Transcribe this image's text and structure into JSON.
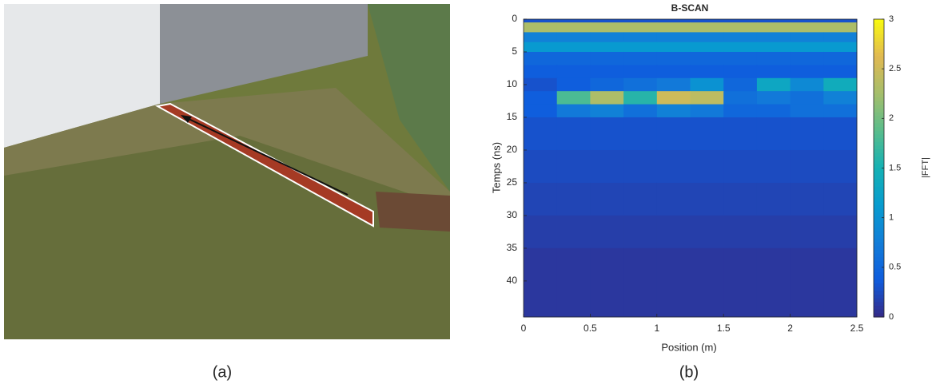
{
  "figure": {
    "panel_labels": [
      "(a)",
      "(b)"
    ]
  },
  "chart_data": {
    "type": "heatmap",
    "title": "B-SCAN",
    "x_label": "Position (m)",
    "y_label": "Temps (ns)",
    "colorbar_label": "|FFT|",
    "colormap": "parula",
    "xlim": [
      0,
      2.5
    ],
    "xticks": [
      0,
      0.5,
      1,
      1.5,
      2,
      2.5
    ],
    "ylim": [
      0,
      45.5
    ],
    "yticks": [
      0,
      5,
      10,
      15,
      20,
      25,
      30,
      35,
      40
    ],
    "y_reversed": true,
    "colorbar_lim": [
      0,
      3
    ],
    "colorbar_ticks": [
      0,
      0.5,
      1,
      1.5,
      2,
      2.5,
      3
    ],
    "xbins": [
      0,
      0.25,
      0.5,
      0.75,
      1,
      1.25,
      1.5,
      1.75,
      2,
      2.25,
      2.5
    ],
    "ybins": [
      0,
      0.5,
      2,
      3.5,
      5,
      7,
      9,
      11,
      13,
      15,
      20,
      25,
      30,
      35,
      45.5
    ],
    "z": [
      [
        0.3,
        0.3,
        0.3,
        0.3,
        0.3,
        0.3,
        0.3,
        0.3,
        0.3,
        0.3
      ],
      [
        2.3,
        2.3,
        2.3,
        2.3,
        2.3,
        2.3,
        2.3,
        2.3,
        2.3,
        2.3
      ],
      [
        0.8,
        0.8,
        0.8,
        0.8,
        0.8,
        0.8,
        0.8,
        0.8,
        0.8,
        0.8
      ],
      [
        1.1,
        1.1,
        1.1,
        1.1,
        1.1,
        1.1,
        1.1,
        1.1,
        1.1,
        1.1
      ],
      [
        0.5,
        0.5,
        0.5,
        0.5,
        0.5,
        0.5,
        0.5,
        0.5,
        0.5,
        0.5
      ],
      [
        0.4,
        0.4,
        0.4,
        0.4,
        0.4,
        0.4,
        0.4,
        0.4,
        0.4,
        0.4
      ],
      [
        0.3,
        0.4,
        0.5,
        0.6,
        0.7,
        1.0,
        0.5,
        1.3,
        0.9,
        1.4
      ],
      [
        0.4,
        1.8,
        2.3,
        1.6,
        2.5,
        2.4,
        0.6,
        0.7,
        0.6,
        0.8
      ],
      [
        0.4,
        0.7,
        0.8,
        0.6,
        0.8,
        0.7,
        0.5,
        0.5,
        0.6,
        0.6
      ],
      [
        0.3,
        0.3,
        0.3,
        0.3,
        0.3,
        0.3,
        0.3,
        0.3,
        0.3,
        0.3
      ],
      [
        0.25,
        0.25,
        0.25,
        0.25,
        0.25,
        0.25,
        0.25,
        0.25,
        0.25,
        0.25
      ],
      [
        0.2,
        0.2,
        0.2,
        0.2,
        0.2,
        0.2,
        0.2,
        0.2,
        0.2,
        0.2
      ],
      [
        0.15,
        0.15,
        0.15,
        0.15,
        0.15,
        0.15,
        0.15,
        0.15,
        0.15,
        0.15
      ],
      [
        0.1,
        0.1,
        0.1,
        0.1,
        0.1,
        0.1,
        0.1,
        0.1,
        0.1,
        0.1
      ]
    ]
  }
}
